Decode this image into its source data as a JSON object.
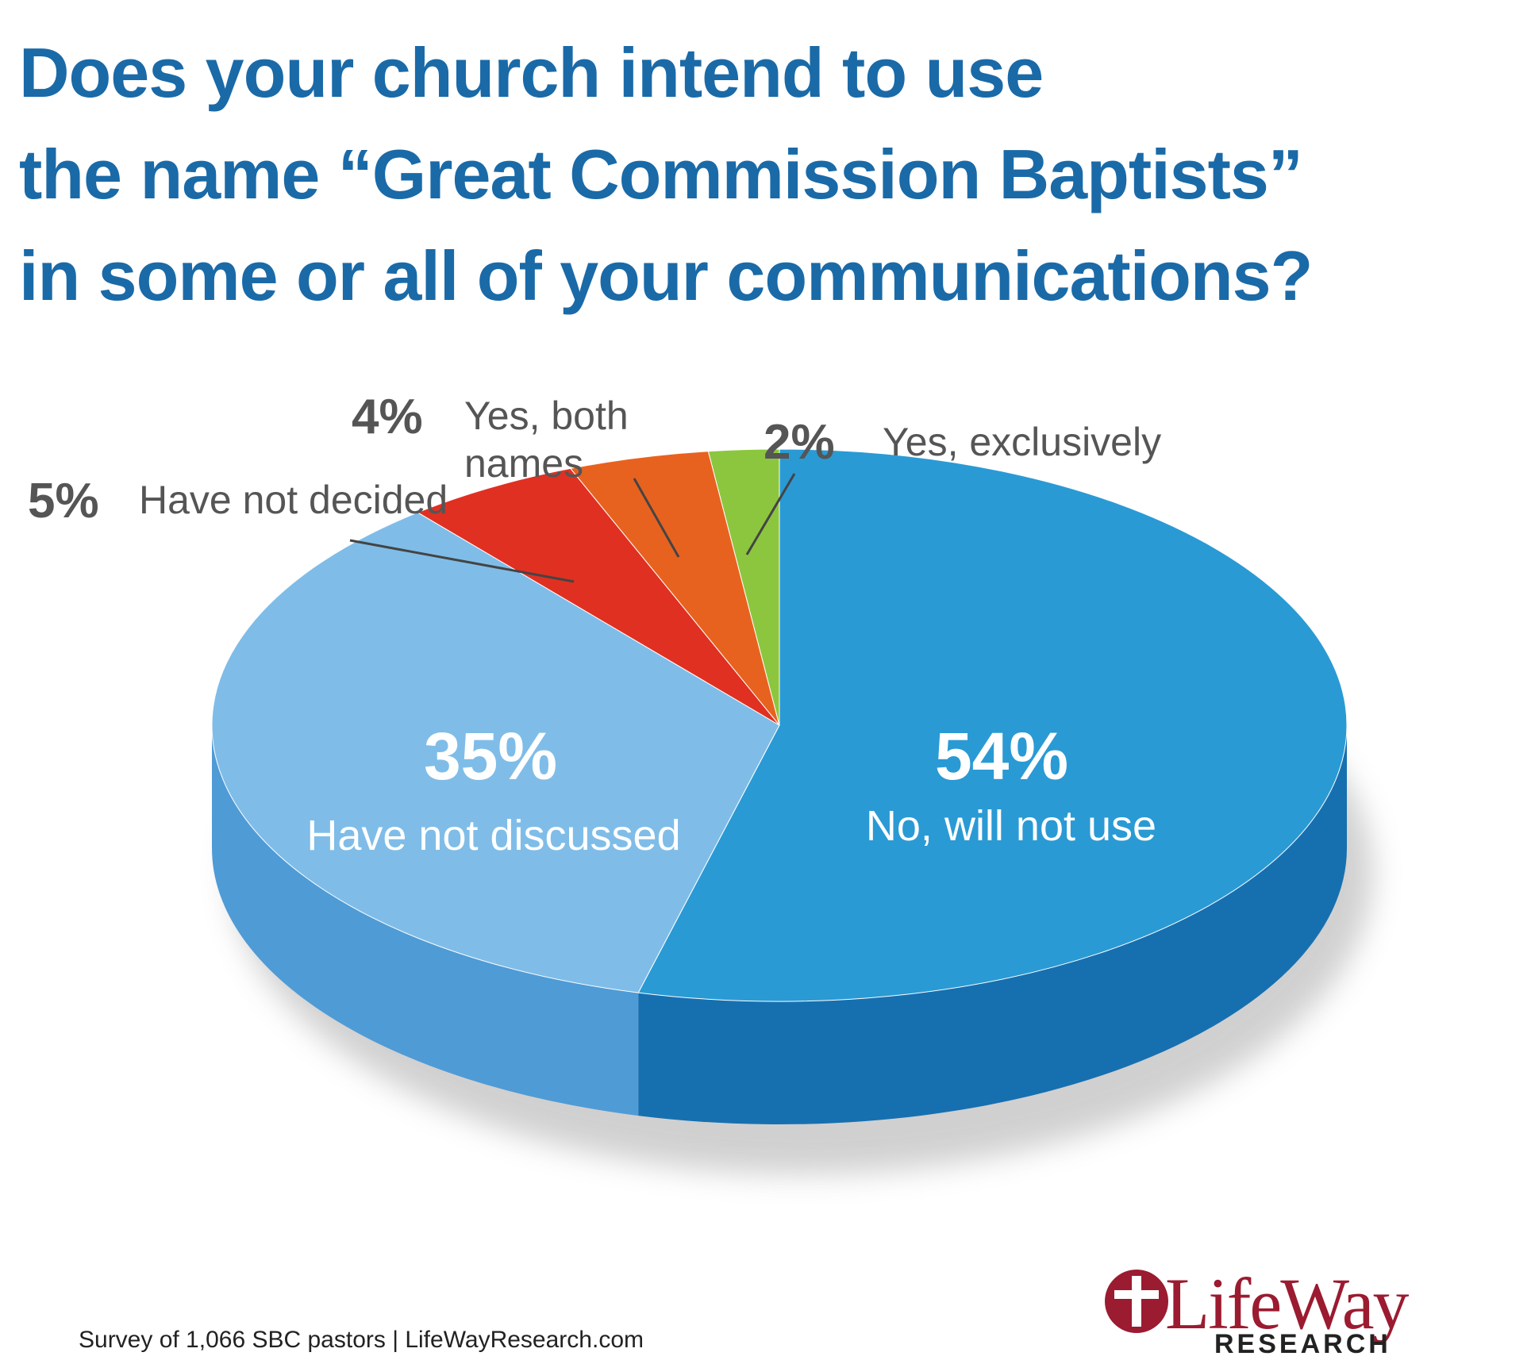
{
  "chart_data": {
    "type": "pie",
    "title": "Does your church intend to use\nthe name “Great Commission Baptists”\nin some or all of your communications?",
    "categories": [
      "No, will not use",
      "Have not discussed",
      "Have not decided",
      "Yes, both\nnames",
      "Yes, exclusively"
    ],
    "values": [
      54,
      35,
      5,
      4,
      2
    ],
    "value_labels": [
      "54%",
      "35%",
      "5%",
      "4%",
      "2%"
    ],
    "colors": [
      "#2a9ad4",
      "#7fbde8",
      "#e03022",
      "#e8621f",
      "#8cc63f"
    ],
    "side_colors": [
      "#1670b0",
      "#4f9bd6",
      "#a81e1e",
      "#b54a18",
      "#5f9a2a"
    ],
    "source": "Survey of 1,066 SBC pastors | LifeWayResearch.com",
    "logo": {
      "name": "LifeWay",
      "subtitle": "RESEARCH"
    }
  }
}
